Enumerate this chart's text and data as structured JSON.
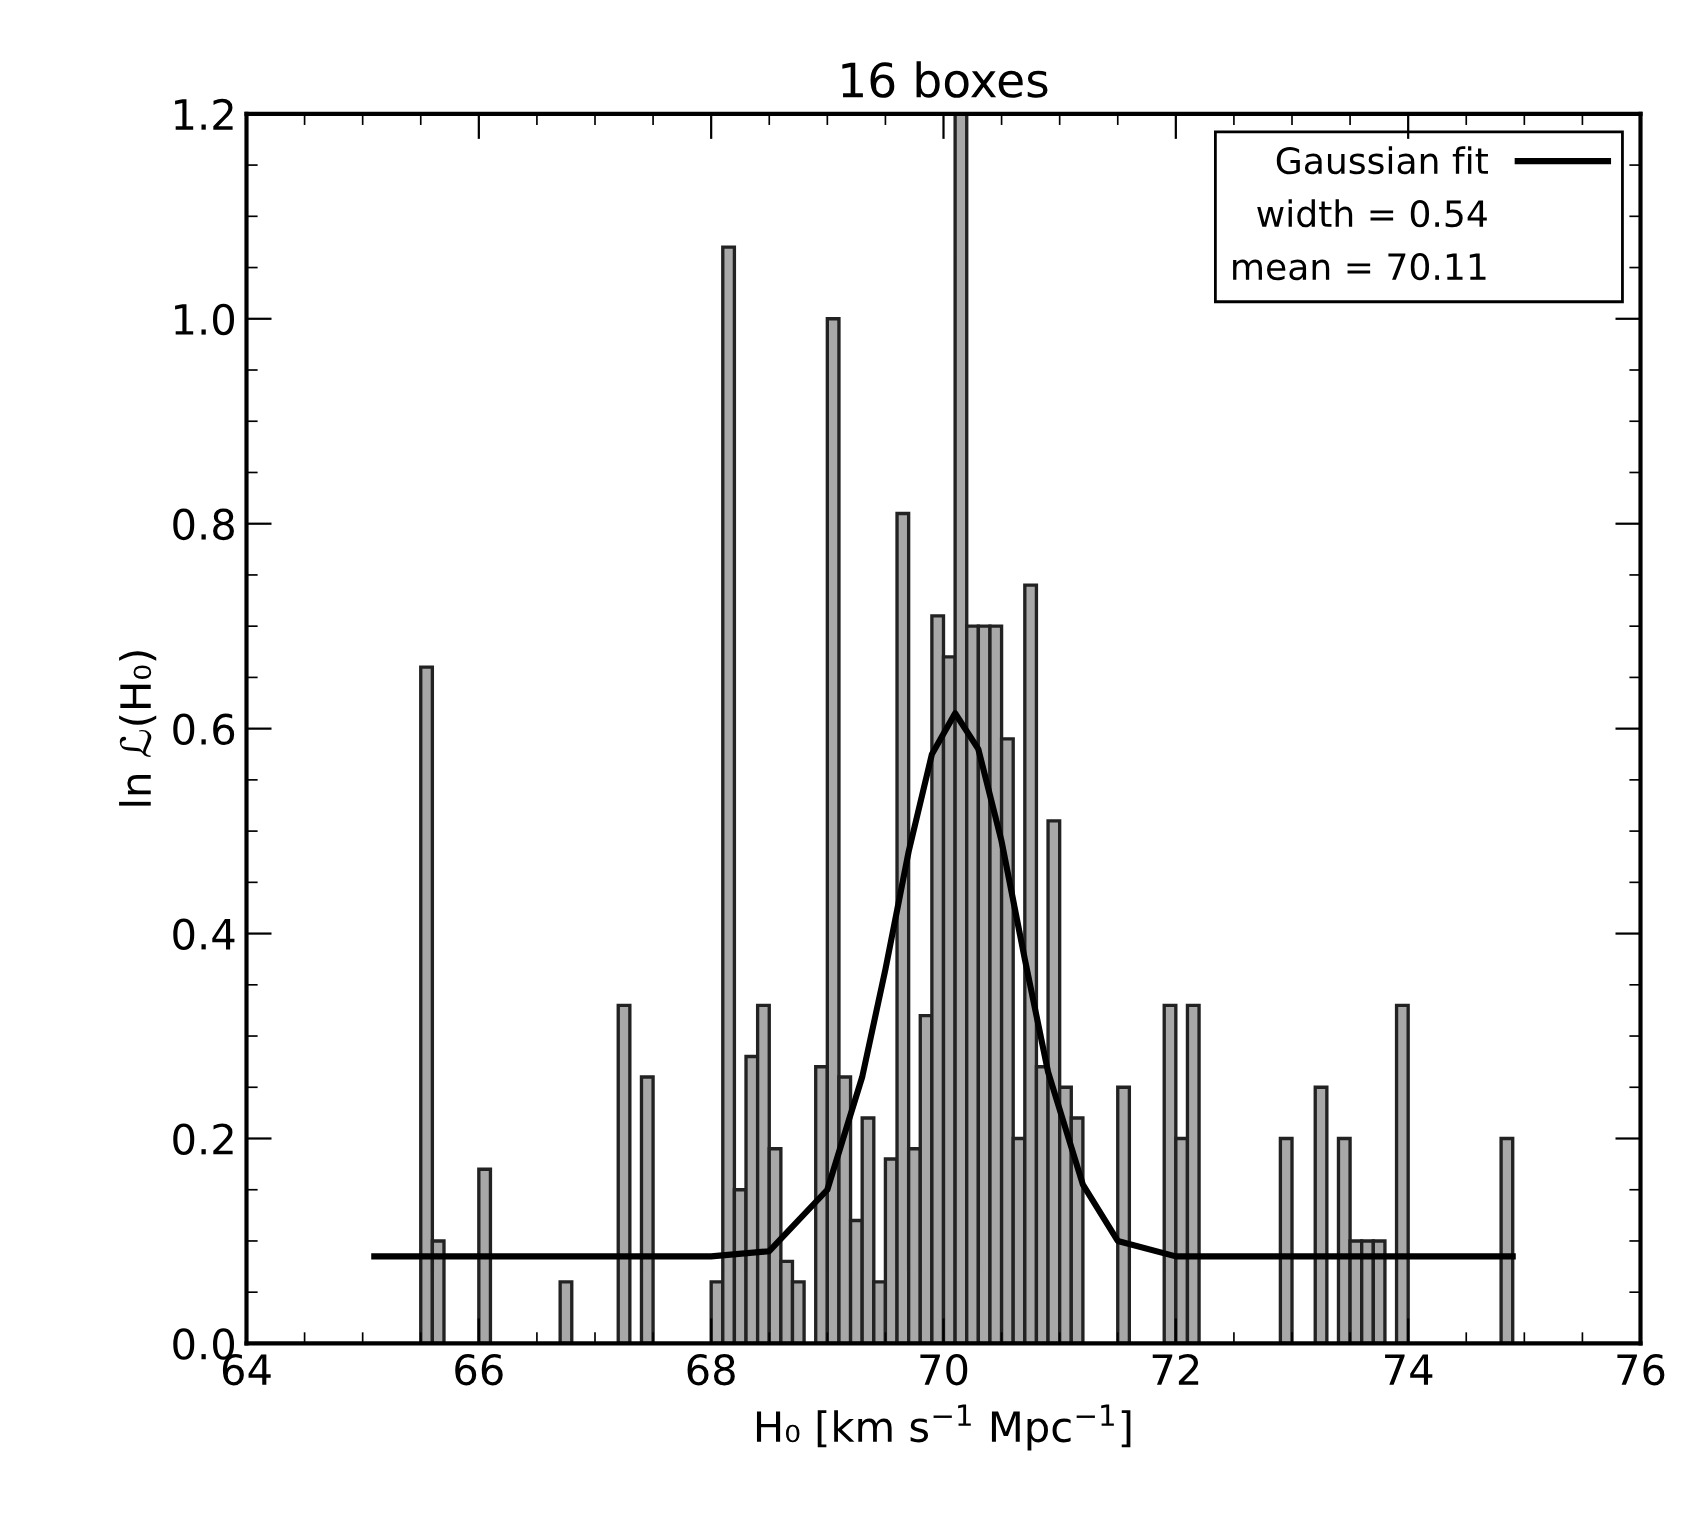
{
  "chart_data": {
    "type": "histogram",
    "title": "16 boxes",
    "xlabel": "H₀ [km s$^{−1}$ Mpc$^{−1}$]",
    "ylabel": "ln ℒ(H₀)",
    "bins": [
      65.0,
      65.1,
      65.2,
      65.3,
      65.4,
      65.5,
      65.6,
      65.7,
      65.8,
      65.9,
      66.0,
      66.1,
      66.2,
      66.3,
      66.4,
      66.5,
      66.6,
      66.7,
      66.8,
      66.9,
      67.0,
      67.1,
      67.2,
      67.3,
      67.4,
      67.5,
      67.6,
      67.7,
      67.8,
      67.9,
      68.0,
      68.1,
      68.2,
      68.3,
      68.4,
      68.5,
      68.6,
      68.7,
      68.8,
      68.9,
      69.0,
      69.1,
      69.2,
      69.3,
      69.4,
      69.5,
      69.6,
      69.7,
      69.8,
      69.9,
      70.0,
      70.1,
      70.2,
      70.3,
      70.4,
      70.5,
      70.6,
      70.7,
      70.8,
      70.9,
      71.0,
      71.1,
      71.2,
      71.3,
      71.4,
      71.5,
      71.6,
      71.7,
      71.8,
      71.9,
      72.0,
      72.1,
      72.2,
      72.3,
      72.4,
      72.5,
      72.6,
      72.7,
      72.8,
      72.9,
      73.0,
      73.1,
      73.2,
      73.3,
      73.4,
      73.5,
      73.6,
      73.7,
      73.8,
      73.9,
      74.0,
      74.1,
      74.2,
      74.3,
      74.4,
      74.5,
      74.6,
      74.7,
      74.8,
      74.9,
      75.0
    ],
    "values": [
      0,
      0,
      0,
      0,
      0,
      0.66,
      0.1,
      0,
      0,
      0,
      0.17,
      0,
      0,
      0,
      0,
      0,
      0,
      0.06,
      0,
      0,
      0,
      0,
      0.33,
      0,
      0.26,
      0,
      0,
      0,
      0,
      0,
      0.06,
      1.07,
      0.15,
      0.28,
      0.33,
      0.19,
      0.08,
      0.06,
      0,
      0.27,
      1.0,
      0.26,
      0.12,
      0.22,
      0.06,
      0.18,
      0.81,
      0.19,
      0.32,
      0.71,
      0.67,
      1.2,
      0.7,
      0.7,
      0.7,
      0.59,
      0.2,
      0.74,
      0.27,
      0.51,
      0.25,
      0.22,
      0,
      0,
      0,
      0.25,
      0,
      0,
      0,
      0.33,
      0.2,
      0.33,
      0,
      0,
      0,
      0,
      0,
      0,
      0,
      0.2,
      0,
      0,
      0.25,
      0,
      0.2,
      0.1,
      0.1,
      0.1,
      0,
      0.33,
      0,
      0,
      0,
      0,
      0,
      0,
      0,
      0,
      0.2,
      0
    ],
    "color": "#a8a8a8",
    "series": [
      {
        "type": "line",
        "name": "Gaussian fit",
        "color": "#000000",
        "x": [
          65.1,
          68.0,
          68.5,
          69.0,
          69.3,
          69.5,
          69.7,
          69.9,
          70.1,
          70.3,
          70.5,
          70.7,
          70.9,
          71.2,
          71.5,
          72.0,
          74.9
        ],
        "values": [
          0.085,
          0.085,
          0.09,
          0.15,
          0.26,
          0.365,
          0.48,
          0.575,
          0.615,
          0.58,
          0.49,
          0.375,
          0.265,
          0.155,
          0.1,
          0.085,
          0.085
        ]
      }
    ],
    "annotations": [
      "width = 0.54",
      "mean = 70.11"
    ],
    "xlim": [
      64,
      76
    ],
    "xticks": [
      64,
      66,
      68,
      70,
      72,
      74,
      76
    ],
    "ylim": [
      0,
      1.2
    ],
    "yticks": [
      {
        "value": 0,
        "label": "0.0"
      },
      0.2,
      0.4,
      0.6,
      0.8,
      {
        "value": 1,
        "label": "1.0"
      },
      1.2
    ],
    "grid": false,
    "legend": "top right",
    "line_style": "solid",
    "marker": "none"
  }
}
